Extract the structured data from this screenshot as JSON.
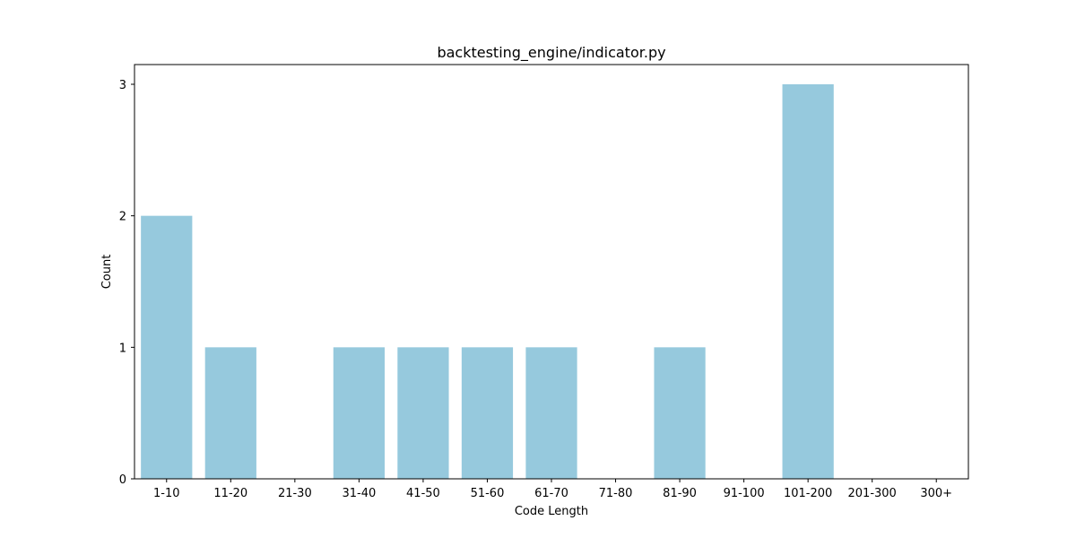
{
  "chart_data": {
    "type": "bar",
    "title": "backtesting_engine/indicator.py",
    "xlabel": "Code Length",
    "ylabel": "Count",
    "categories": [
      "1-10",
      "11-20",
      "21-30",
      "31-40",
      "41-50",
      "51-60",
      "61-70",
      "71-80",
      "81-90",
      "91-100",
      "101-200",
      "201-300",
      "300+"
    ],
    "values": [
      2,
      1,
      0,
      1,
      1,
      1,
      1,
      0,
      1,
      0,
      3,
      0,
      0
    ],
    "ylim": [
      0,
      3.15
    ],
    "yticks": [
      0,
      1,
      2,
      3
    ],
    "grid": false,
    "bar_color": "#96c9dd"
  }
}
